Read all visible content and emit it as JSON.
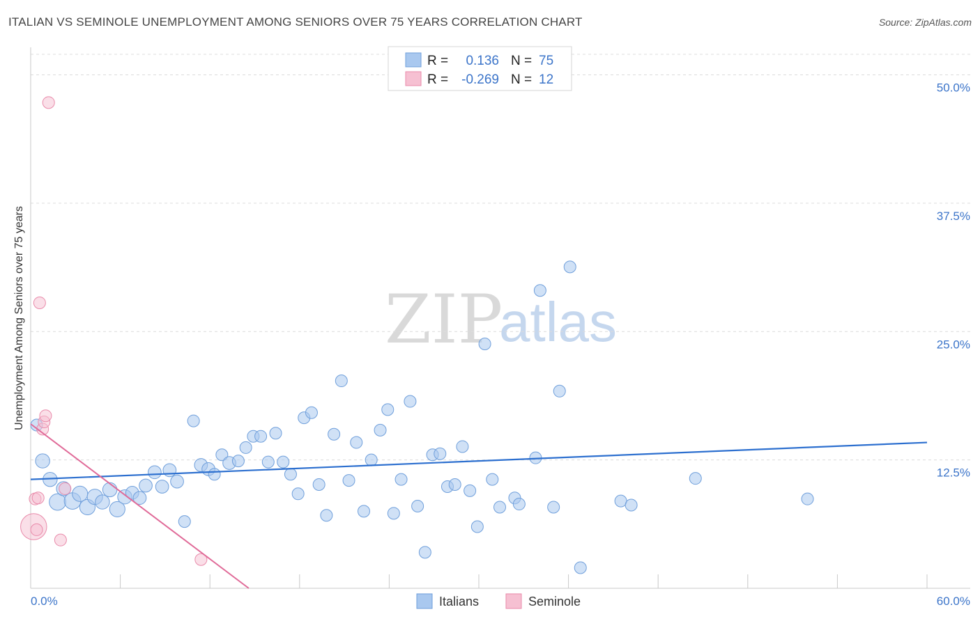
{
  "header": {
    "title": "ITALIAN VS SEMINOLE UNEMPLOYMENT AMONG SENIORS OVER 75 YEARS CORRELATION CHART",
    "source": "Source: ZipAtlas.com"
  },
  "watermark": {
    "zip": "ZIP",
    "atlas": "atlas"
  },
  "legend": {
    "r_label": "R =",
    "n_label": "N =",
    "italians": {
      "r": "0.136",
      "n": "75"
    },
    "seminole": {
      "r": "-0.269",
      "n": "12"
    }
  },
  "colors": {
    "italians_fill": "#a9c8ef",
    "italians_stroke": "#6f9fdb",
    "italians_line": "#2c6fcf",
    "seminole_fill": "#f6c0d2",
    "seminole_stroke": "#e98aaa",
    "seminole_line": "#e06a98",
    "grid": "#dcdcdc",
    "axis_text": "#3b74c9"
  },
  "chart_data": {
    "type": "scatter",
    "title": "ITALIAN VS SEMINOLE UNEMPLOYMENT AMONG SENIORS OVER 75 YEARS CORRELATION CHART",
    "xlabel": "",
    "ylabel": "Unemployment Among Seniors over 75 years",
    "xlim": [
      0,
      60
    ],
    "ylim": [
      0,
      52
    ],
    "x_tick_labels": [
      "0.0%",
      "60.0%"
    ],
    "y_ticks": [
      12.5,
      25.0,
      37.5,
      50.0
    ],
    "y_tick_labels": [
      "12.5%",
      "25.0%",
      "37.5%",
      "50.0%"
    ],
    "grid": true,
    "legend_position": "top-center",
    "series": [
      {
        "name": "Italians",
        "r": 0.136,
        "n": 75,
        "trend": {
          "x": [
            0,
            60
          ],
          "y": [
            10.6,
            14.2
          ]
        },
        "points": [
          {
            "x": 0.4,
            "y": 15.9,
            "s": 1
          },
          {
            "x": 0.8,
            "y": 12.4,
            "s": 1.2
          },
          {
            "x": 1.3,
            "y": 10.6,
            "s": 1.2
          },
          {
            "x": 1.8,
            "y": 8.4,
            "s": 1.4
          },
          {
            "x": 2.2,
            "y": 9.7,
            "s": 1.2
          },
          {
            "x": 2.8,
            "y": 8.5,
            "s": 1.4
          },
          {
            "x": 3.3,
            "y": 9.2,
            "s": 1.3
          },
          {
            "x": 3.8,
            "y": 7.9,
            "s": 1.3
          },
          {
            "x": 4.3,
            "y": 8.9,
            "s": 1.3
          },
          {
            "x": 4.8,
            "y": 8.4,
            "s": 1.2
          },
          {
            "x": 5.3,
            "y": 9.6,
            "s": 1.2
          },
          {
            "x": 5.8,
            "y": 7.7,
            "s": 1.3
          },
          {
            "x": 6.3,
            "y": 8.9,
            "s": 1.2
          },
          {
            "x": 6.8,
            "y": 9.3,
            "s": 1.1
          },
          {
            "x": 7.3,
            "y": 8.8,
            "s": 1.1
          },
          {
            "x": 7.7,
            "y": 10.0,
            "s": 1.1
          },
          {
            "x": 8.3,
            "y": 11.3,
            "s": 1.1
          },
          {
            "x": 8.8,
            "y": 9.9,
            "s": 1.1
          },
          {
            "x": 9.3,
            "y": 11.5,
            "s": 1.1
          },
          {
            "x": 9.8,
            "y": 10.4,
            "s": 1.1
          },
          {
            "x": 10.3,
            "y": 6.5,
            "s": 1
          },
          {
            "x": 10.9,
            "y": 16.3,
            "s": 1
          },
          {
            "x": 11.4,
            "y": 12.0,
            "s": 1.1
          },
          {
            "x": 11.9,
            "y": 11.6,
            "s": 1.1
          },
          {
            "x": 12.3,
            "y": 11.1,
            "s": 1
          },
          {
            "x": 12.8,
            "y": 13.0,
            "s": 1
          },
          {
            "x": 13.3,
            "y": 12.2,
            "s": 1.1
          },
          {
            "x": 13.9,
            "y": 12.4,
            "s": 1
          },
          {
            "x": 14.4,
            "y": 13.7,
            "s": 1
          },
          {
            "x": 14.9,
            "y": 14.8,
            "s": 1
          },
          {
            "x": 15.4,
            "y": 14.8,
            "s": 1
          },
          {
            "x": 15.9,
            "y": 12.3,
            "s": 1
          },
          {
            "x": 16.4,
            "y": 15.1,
            "s": 1
          },
          {
            "x": 16.9,
            "y": 12.3,
            "s": 1
          },
          {
            "x": 17.4,
            "y": 11.1,
            "s": 1
          },
          {
            "x": 17.9,
            "y": 9.2,
            "s": 1
          },
          {
            "x": 18.3,
            "y": 16.6,
            "s": 1
          },
          {
            "x": 18.8,
            "y": 17.1,
            "s": 1
          },
          {
            "x": 19.3,
            "y": 10.1,
            "s": 1
          },
          {
            "x": 19.8,
            "y": 7.1,
            "s": 1
          },
          {
            "x": 20.3,
            "y": 15.0,
            "s": 1
          },
          {
            "x": 20.8,
            "y": 20.2,
            "s": 1
          },
          {
            "x": 21.3,
            "y": 10.5,
            "s": 1
          },
          {
            "x": 21.8,
            "y": 14.2,
            "s": 1
          },
          {
            "x": 22.3,
            "y": 7.5,
            "s": 1
          },
          {
            "x": 22.8,
            "y": 12.5,
            "s": 1
          },
          {
            "x": 23.4,
            "y": 15.4,
            "s": 1
          },
          {
            "x": 23.9,
            "y": 17.4,
            "s": 1
          },
          {
            "x": 24.3,
            "y": 7.3,
            "s": 1
          },
          {
            "x": 24.8,
            "y": 10.6,
            "s": 1
          },
          {
            "x": 25.4,
            "y": 18.2,
            "s": 1
          },
          {
            "x": 25.9,
            "y": 8.0,
            "s": 1
          },
          {
            "x": 26.4,
            "y": 3.5,
            "s": 1
          },
          {
            "x": 26.9,
            "y": 13.0,
            "s": 1
          },
          {
            "x": 27.4,
            "y": 13.1,
            "s": 1
          },
          {
            "x": 27.9,
            "y": 9.9,
            "s": 1
          },
          {
            "x": 28.4,
            "y": 10.1,
            "s": 1
          },
          {
            "x": 28.9,
            "y": 13.8,
            "s": 1
          },
          {
            "x": 29.4,
            "y": 9.5,
            "s": 1
          },
          {
            "x": 29.9,
            "y": 6.0,
            "s": 1
          },
          {
            "x": 30.4,
            "y": 23.8,
            "s": 1
          },
          {
            "x": 30.9,
            "y": 10.6,
            "s": 1
          },
          {
            "x": 31.4,
            "y": 7.9,
            "s": 1
          },
          {
            "x": 32.4,
            "y": 8.8,
            "s": 1
          },
          {
            "x": 32.7,
            "y": 8.2,
            "s": 1
          },
          {
            "x": 33.8,
            "y": 12.7,
            "s": 1
          },
          {
            "x": 34.1,
            "y": 29.0,
            "s": 1
          },
          {
            "x": 35.0,
            "y": 7.9,
            "s": 1
          },
          {
            "x": 35.4,
            "y": 19.2,
            "s": 1
          },
          {
            "x": 36.1,
            "y": 31.3,
            "s": 1
          },
          {
            "x": 36.8,
            "y": 2.0,
            "s": 1
          },
          {
            "x": 39.5,
            "y": 8.5,
            "s": 1
          },
          {
            "x": 40.2,
            "y": 8.1,
            "s": 1
          },
          {
            "x": 44.5,
            "y": 10.7,
            "s": 1
          },
          {
            "x": 52.0,
            "y": 8.7,
            "s": 1
          }
        ]
      },
      {
        "name": "Seminole",
        "r": -0.269,
        "n": 12,
        "trend": {
          "x": [
            0,
            14.6
          ],
          "y": [
            16.0,
            0.0
          ]
        },
        "points": [
          {
            "x": 0.2,
            "y": 6.0,
            "s": 2.2
          },
          {
            "x": 0.3,
            "y": 8.7,
            "s": 1
          },
          {
            "x": 0.4,
            "y": 5.7,
            "s": 1
          },
          {
            "x": 0.5,
            "y": 8.8,
            "s": 1
          },
          {
            "x": 0.6,
            "y": 27.8,
            "s": 1
          },
          {
            "x": 0.8,
            "y": 15.5,
            "s": 1
          },
          {
            "x": 0.9,
            "y": 16.2,
            "s": 1
          },
          {
            "x": 1.0,
            "y": 16.8,
            "s": 1
          },
          {
            "x": 1.2,
            "y": 47.3,
            "s": 1
          },
          {
            "x": 2.0,
            "y": 4.7,
            "s": 1
          },
          {
            "x": 2.3,
            "y": 9.7,
            "s": 1
          },
          {
            "x": 11.4,
            "y": 2.8,
            "s": 1
          }
        ]
      }
    ]
  },
  "bottom_legend": {
    "italians_label": "Italians",
    "seminole_label": "Seminole"
  }
}
